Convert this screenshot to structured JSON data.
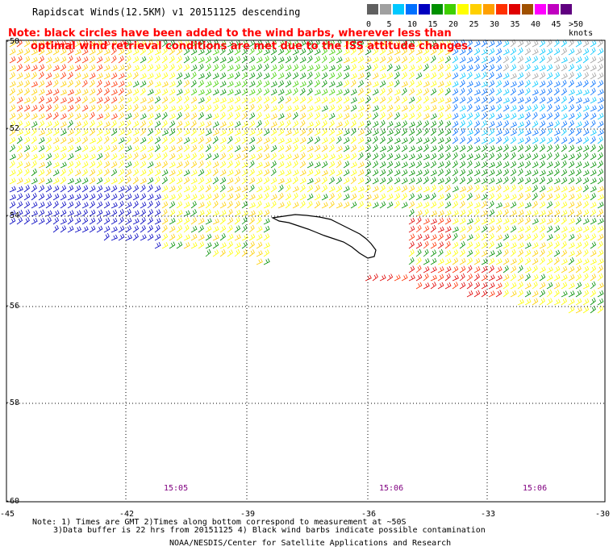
{
  "header": {
    "title": "Rapidscat Winds(12.5KM) v1 20151125 descending",
    "note_line1": "Note: black circles have been added to the wind barbs, wherever less than",
    "note_line2": "optimal wind retrieval conditions are met due to the ISS attitude changes."
  },
  "legend": {
    "unit_label": ">50 knots",
    "labels": [
      "0",
      "5",
      "10",
      "15",
      "20",
      "25",
      "30",
      "35",
      "40",
      "45"
    ],
    "colors": [
      "#606060",
      "#a0a0a0",
      "#00c8ff",
      "#0070ff",
      "#0000c0",
      "#009000",
      "#40d000",
      "#ffff00",
      "#ffd000",
      "#ffa000",
      "#ff3000",
      "#e00000",
      "#a05000",
      "#ff00ff",
      "#c000c0",
      "#600080"
    ]
  },
  "map": {
    "lat_labels": [
      "-50",
      "-52",
      "-54",
      "-56",
      "-58",
      "-60"
    ],
    "lon_labels": [
      "-45",
      "-42",
      "-39",
      "-36",
      "-33",
      "-30"
    ],
    "time_labels": [
      "15:05",
      "15:06",
      "15:06"
    ]
  },
  "footer": {
    "line1": "Note: 1) Times are GMT 2)Times along bottom correspond to measurement at ~50S",
    "line2": "3)Data buffer is 22 hrs from 20151125 4) Black wind barbs indicate possible contamination",
    "line3": "NOAA/NESDIS/Center for Satellite Applications and Research"
  }
}
